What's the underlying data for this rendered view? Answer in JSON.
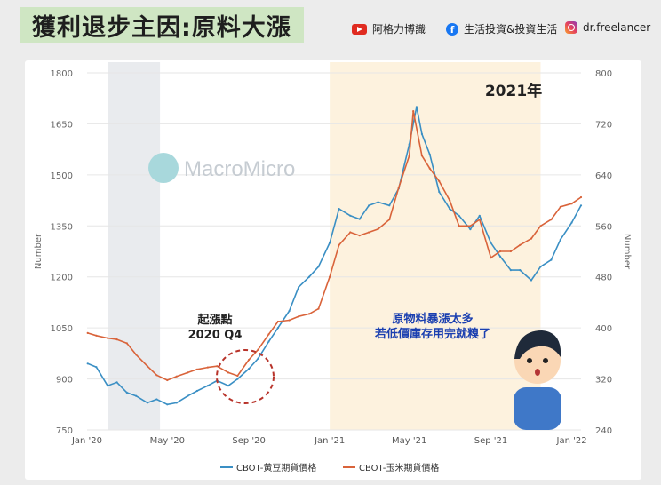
{
  "header": {
    "title": "獲利退步主因:原料大漲",
    "youtube_label": "阿格力博識",
    "facebook_label": "生活投資&投資生活",
    "instagram_label": "dr.freelancer"
  },
  "watermark": "MacroMicro",
  "annotations": {
    "period_label": "2021年",
    "start_label_line1": "起漲點",
    "start_label_line2": "2020 Q4",
    "bubble_line1": "原物料暴漲太多",
    "bubble_line2": "若低價庫存用完就糗了"
  },
  "colors": {
    "soy": "#3a8fc4",
    "corn": "#d9633a",
    "shade_grey": "#e9ebee",
    "shade_yellow": "#fdf2de"
  },
  "chart_data": {
    "type": "line",
    "left_axis": {
      "label": "Number",
      "range": [
        750,
        1800
      ],
      "ticks": [
        "750",
        "900",
        "1050",
        "1200",
        "1350",
        "1500",
        "1650",
        "1800"
      ]
    },
    "right_axis": {
      "label": "Number",
      "range": [
        240,
        800
      ],
      "ticks": [
        "240",
        "320",
        "400",
        "480",
        "560",
        "640",
        "720",
        "800"
      ]
    },
    "x_ticks": [
      "Jan '20",
      "May '20",
      "Sep '20",
      "Jan '21",
      "May '21",
      "Sep '21",
      "Jan '22"
    ],
    "x_tick_dates": [
      "2020-01-01",
      "2020-05-01",
      "2020-09-01",
      "2021-01-01",
      "2021-05-01",
      "2021-09-01",
      "2022-01-01"
    ],
    "shaded_ranges": [
      [
        "2020-02-01",
        "2020-04-20"
      ],
      [
        "2021-01-01",
        "2021-11-15"
      ]
    ],
    "series": [
      {
        "name": "CBOT-黃豆期貨價格",
        "axis": "left",
        "color": "#3a8fc4",
        "dates": [
          "2020-01-02",
          "2020-01-15",
          "2020-02-01",
          "2020-02-15",
          "2020-03-01",
          "2020-03-15",
          "2020-04-01",
          "2020-04-15",
          "2020-05-01",
          "2020-05-15",
          "2020-06-01",
          "2020-06-15",
          "2020-07-01",
          "2020-07-15",
          "2020-08-01",
          "2020-08-15",
          "2020-09-01",
          "2020-09-15",
          "2020-10-01",
          "2020-10-15",
          "2020-11-01",
          "2020-11-15",
          "2020-12-01",
          "2020-12-15",
          "2021-01-01",
          "2021-01-15",
          "2021-02-01",
          "2021-02-15",
          "2021-03-01",
          "2021-03-15",
          "2021-04-01",
          "2021-04-15",
          "2021-05-01",
          "2021-05-12",
          "2021-05-20",
          "2021-06-01",
          "2021-06-15",
          "2021-07-01",
          "2021-07-15",
          "2021-08-01",
          "2021-08-15",
          "2021-09-01",
          "2021-09-15",
          "2021-10-01",
          "2021-10-15",
          "2021-11-01",
          "2021-11-15",
          "2021-12-01",
          "2021-12-15",
          "2022-01-01",
          "2022-01-15"
        ],
        "values": [
          945,
          935,
          880,
          890,
          860,
          850,
          830,
          840,
          825,
          830,
          850,
          865,
          880,
          895,
          880,
          900,
          930,
          960,
          1010,
          1050,
          1100,
          1170,
          1200,
          1230,
          1300,
          1400,
          1380,
          1370,
          1410,
          1420,
          1410,
          1460,
          1590,
          1700,
          1620,
          1560,
          1450,
          1400,
          1380,
          1340,
          1380,
          1300,
          1260,
          1220,
          1220,
          1190,
          1230,
          1250,
          1310,
          1360,
          1410
        ]
      },
      {
        "name": "CBOT-玉米期貨價格",
        "axis": "right",
        "color": "#d9633a",
        "dates": [
          "2020-01-02",
          "2020-01-15",
          "2020-02-01",
          "2020-02-15",
          "2020-03-01",
          "2020-03-15",
          "2020-04-01",
          "2020-04-15",
          "2020-05-01",
          "2020-05-15",
          "2020-06-01",
          "2020-06-15",
          "2020-07-01",
          "2020-07-15",
          "2020-08-01",
          "2020-08-15",
          "2020-09-01",
          "2020-09-15",
          "2020-10-01",
          "2020-10-15",
          "2020-11-01",
          "2020-11-15",
          "2020-12-01",
          "2020-12-15",
          "2021-01-01",
          "2021-01-15",
          "2021-02-01",
          "2021-02-15",
          "2021-03-01",
          "2021-03-15",
          "2021-04-01",
          "2021-04-15",
          "2021-05-01",
          "2021-05-07",
          "2021-05-20",
          "2021-06-01",
          "2021-06-15",
          "2021-07-01",
          "2021-07-15",
          "2021-08-01",
          "2021-08-15",
          "2021-09-01",
          "2021-09-15",
          "2021-10-01",
          "2021-10-15",
          "2021-11-01",
          "2021-11-15",
          "2021-12-01",
          "2021-12-15",
          "2022-01-01",
          "2022-01-15"
        ],
        "values": [
          392,
          388,
          384,
          382,
          376,
          358,
          340,
          326,
          318,
          324,
          330,
          335,
          338,
          340,
          330,
          325,
          350,
          366,
          390,
          410,
          412,
          418,
          422,
          430,
          480,
          530,
          550,
          545,
          550,
          555,
          570,
          620,
          670,
          740,
          670,
          650,
          630,
          600,
          560,
          560,
          570,
          510,
          520,
          520,
          530,
          540,
          560,
          570,
          590,
          595,
          605
        ]
      }
    ]
  }
}
